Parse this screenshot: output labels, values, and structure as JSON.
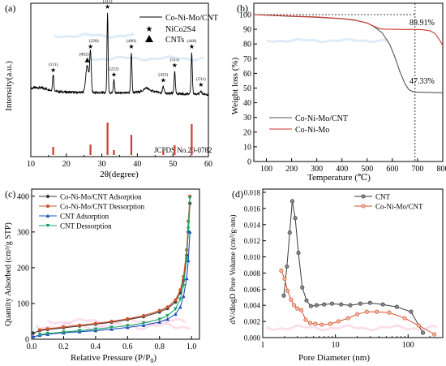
{
  "colors": {
    "black": "#000000",
    "red": "#cc3a2a",
    "gray": "#555555",
    "darkgray": "#3a3a3a",
    "orange": "#d4512a",
    "blue": "#1f4fbf",
    "green": "#18a66a",
    "pinkbg": "#f2a6c8",
    "bluebg": "#9ec8ea"
  },
  "chart_data": [
    {
      "panel_label": "(a)",
      "type": "line",
      "xlabel": "2θ(degree)",
      "ylabel": "Intensity(a.u.)",
      "xlim": [
        10,
        60
      ],
      "xticks": [
        "10",
        "20",
        "30",
        "40",
        "50",
        "60"
      ],
      "legend": [
        "Co-Ni-Mo/CNT",
        "NiCo2S4",
        "CNTs"
      ],
      "series": [
        {
          "name": "Co-Ni-Mo/CNT",
          "peaks": [
            {
              "x": 16.3,
              "h": 0.2,
              "w": 0.25
            },
            {
              "x": 25.9,
              "h": 0.32,
              "w": 0.6
            },
            {
              "x": 26.8,
              "h": 0.48,
              "w": 0.3
            },
            {
              "x": 31.6,
              "h": 0.95,
              "w": 0.22
            },
            {
              "x": 33.4,
              "h": 0.15,
              "w": 0.25
            },
            {
              "x": 38.3,
              "h": 0.48,
              "w": 0.25
            },
            {
              "x": 42.5,
              "h": 0.03,
              "w": 0.8
            },
            {
              "x": 47.3,
              "h": 0.08,
              "w": 0.3
            },
            {
              "x": 50.5,
              "h": 0.26,
              "w": 0.25
            },
            {
              "x": 55.3,
              "h": 0.48,
              "w": 0.25
            },
            {
              "x": 57.9,
              "h": 0.03,
              "w": 0.3
            }
          ]
        }
      ],
      "peak_labels": [
        {
          "x": 16.3,
          "text": "(111)",
          "marker": "star"
        },
        {
          "x": 25.9,
          "text": "(002)",
          "marker": "triangle"
        },
        {
          "x": 26.8,
          "text": "(220)",
          "marker": "star"
        },
        {
          "x": 31.6,
          "text": "(311)",
          "marker": "star"
        },
        {
          "x": 33.4,
          "text": "(222)",
          "marker": "star"
        },
        {
          "x": 38.3,
          "text": "(400)",
          "marker": "star"
        },
        {
          "x": 47.3,
          "text": "(422)",
          "marker": "star"
        },
        {
          "x": 50.5,
          "text": "(511)",
          "marker": "star"
        },
        {
          "x": 55.3,
          "text": "(440)",
          "marker": "star"
        },
        {
          "x": 57.9,
          "text": "(531)",
          "marker": "star"
        }
      ],
      "reference": {
        "label": "JCPDS No.20-0782",
        "lines": [
          {
            "x": 16.3,
            "h": 0.25
          },
          {
            "x": 26.8,
            "h": 0.32
          },
          {
            "x": 31.6,
            "h": 1.0
          },
          {
            "x": 33.4,
            "h": 0.15
          },
          {
            "x": 38.3,
            "h": 0.62
          },
          {
            "x": 47.3,
            "h": 0.12
          },
          {
            "x": 50.5,
            "h": 0.3
          },
          {
            "x": 55.3,
            "h": 0.95
          }
        ]
      }
    },
    {
      "panel_label": "(b)",
      "type": "line",
      "xlabel": "Temperature (℃)",
      "ylabel": "Weight loss (%)",
      "xlim": [
        50,
        800
      ],
      "ylim": [
        0,
        100
      ],
      "xticks": [
        100,
        200,
        300,
        400,
        500,
        600,
        700,
        800
      ],
      "yticks": [
        0,
        10,
        20,
        30,
        40,
        50,
        60,
        70,
        80,
        90,
        100
      ],
      "marker_temperature": 690,
      "annotations": [
        "89.91%",
        "47.33%"
      ],
      "series": [
        {
          "name": "Co-Ni-Mo/CNT",
          "x": [
            50,
            100,
            200,
            300,
            400,
            450,
            500,
            530,
            560,
            590,
            610,
            630,
            650,
            665,
            680,
            690,
            700,
            750,
            800
          ],
          "y": [
            100,
            99.6,
            98.8,
            98.2,
            97.2,
            96.2,
            94.3,
            91.5,
            87.5,
            79.5,
            71,
            61,
            53,
            49,
            47.6,
            47.33,
            47.2,
            47.0,
            46.8
          ]
        },
        {
          "name": "Co-Ni-Mo",
          "x": [
            50,
            100,
            200,
            300,
            400,
            450,
            500,
            530,
            550,
            570,
            600,
            650,
            690,
            720,
            750,
            770,
            790,
            800
          ],
          "y": [
            100,
            99.7,
            99.0,
            98.4,
            97.3,
            96.4,
            94.2,
            91.8,
            90.4,
            90.1,
            90.0,
            89.9,
            89.91,
            89.7,
            89.0,
            87.0,
            82.0,
            79.0
          ]
        }
      ]
    },
    {
      "panel_label": "(c)",
      "type": "line",
      "xlabel": "Relative Pressure (P/P0)",
      "ylabel": "Quantity Adsorbed (cm³/g STP)",
      "xlim": [
        0,
        1.05
      ],
      "ylim": [
        0,
        420
      ],
      "xticks": [
        "0.0",
        "0.2",
        "0.4",
        "0.6",
        "0.8",
        "1.0"
      ],
      "yticks": [
        0,
        100,
        200,
        300,
        400
      ],
      "series": [
        {
          "name": "Co-Ni-Mo/CNT Adsorption",
          "x": [
            0.01,
            0.05,
            0.1,
            0.2,
            0.3,
            0.4,
            0.5,
            0.6,
            0.7,
            0.8,
            0.85,
            0.9,
            0.93,
            0.95,
            0.97,
            0.98,
            0.99
          ],
          "y": [
            17,
            24,
            27,
            32,
            37,
            42,
            48,
            55,
            63,
            76,
            86,
            104,
            130,
            165,
            235,
            300,
            380
          ]
        },
        {
          "name": "Co-Ni-Mo/CNT Dessorption",
          "x": [
            0.99,
            0.98,
            0.97,
            0.95,
            0.93,
            0.9,
            0.85,
            0.8,
            0.7,
            0.6,
            0.5,
            0.4,
            0.3,
            0.2,
            0.1,
            0.05
          ],
          "y": [
            400,
            330,
            250,
            175,
            138,
            110,
            90,
            80,
            66,
            57,
            50,
            44,
            39,
            34,
            29,
            26
          ]
        },
        {
          "name": "CNT Adsorption",
          "x": [
            0.01,
            0.05,
            0.1,
            0.2,
            0.3,
            0.4,
            0.5,
            0.6,
            0.7,
            0.8,
            0.85,
            0.9,
            0.93,
            0.95,
            0.97,
            0.98,
            0.99
          ],
          "y": [
            7,
            11,
            14,
            18,
            21,
            24,
            28,
            33,
            39,
            48,
            56,
            70,
            90,
            120,
            170,
            220,
            300
          ]
        },
        {
          "name": "CNT Dessorption",
          "x": [
            0.99,
            0.98,
            0.97,
            0.95,
            0.93,
            0.9,
            0.85,
            0.8,
            0.7,
            0.6,
            0.5,
            0.4,
            0.3,
            0.2,
            0.1,
            0.05
          ],
          "y": [
            395,
            310,
            225,
            150,
            112,
            85,
            66,
            56,
            45,
            38,
            33,
            28,
            24,
            20,
            16,
            13
          ]
        }
      ]
    },
    {
      "panel_label": "(d)",
      "type": "line",
      "xlabel": "Pore Diameter (nm)",
      "ylabel": "dV/dlogD Pore Volume (cm³/g·nm)",
      "xscale": "log",
      "xlim": [
        1,
        300
      ],
      "ylim": [
        0,
        0.018
      ],
      "xticks": [
        1,
        10,
        100
      ],
      "yticks": [
        "0.000",
        "0.002",
        "0.004",
        "0.006",
        "0.008",
        "0.010",
        "0.012",
        "0.014",
        "0.016",
        "0.018"
      ],
      "series": [
        {
          "name": "CNT",
          "x": [
            1.95,
            2.15,
            2.35,
            2.55,
            2.8,
            3.1,
            3.5,
            4.0,
            4.6,
            5.5,
            7.0,
            9.0,
            12,
            16,
            22,
            30,
            45,
            70,
            110,
            160
          ],
          "y": [
            0.0052,
            0.0088,
            0.013,
            0.0169,
            0.0148,
            0.0105,
            0.0062,
            0.0046,
            0.0039,
            0.004,
            0.0041,
            0.0042,
            0.0041,
            0.004,
            0.0042,
            0.0043,
            0.0041,
            0.0038,
            0.0032,
            0.0006
          ]
        },
        {
          "name": "Co-Ni-Mo/CNT",
          "x": [
            1.8,
            2.0,
            2.2,
            2.45,
            2.7,
            3.0,
            3.4,
            3.9,
            4.5,
            5.3,
            6.5,
            8.5,
            11,
            15,
            20,
            27,
            37,
            55,
            90,
            140,
            230
          ],
          "y": [
            0.0083,
            0.0073,
            0.0058,
            0.0047,
            0.004,
            0.0036,
            0.0034,
            0.0022,
            0.0018,
            0.0017,
            0.0016,
            0.0017,
            0.002,
            0.0024,
            0.0029,
            0.0032,
            0.0032,
            0.0031,
            0.0024,
            0.0015,
            0.0004
          ]
        }
      ]
    }
  ]
}
